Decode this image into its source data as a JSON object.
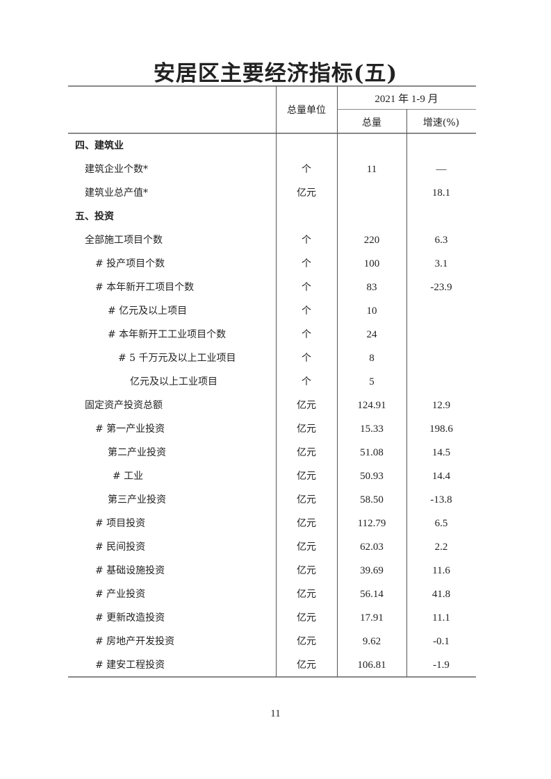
{
  "title": "安居区主要经济指标(五)",
  "header": {
    "unit": "总量单位",
    "period": "2021 年 1-9 月",
    "total": "总量",
    "growth": "增速(%)"
  },
  "rows": [
    {
      "label": "四、建筑业",
      "level": 0,
      "bold": true,
      "unit": "",
      "total": "",
      "growth": ""
    },
    {
      "label": "建筑企业个数*",
      "level": 1,
      "unit": "个",
      "total": "11",
      "growth": "—"
    },
    {
      "label": "建筑业总产值*",
      "level": 1,
      "unit": "亿元",
      "total": "",
      "growth": "18.1"
    },
    {
      "label": "五、投资",
      "level": 0,
      "bold": true,
      "unit": "",
      "total": "",
      "growth": ""
    },
    {
      "label": "全部施工项目个数",
      "level": 1,
      "unit": "个",
      "total": "220",
      "growth": "6.3"
    },
    {
      "label": "# 投产项目个数",
      "level": 2,
      "unit": "个",
      "total": "100",
      "growth": "3.1"
    },
    {
      "label": "# 本年新开工项目个数",
      "level": 2,
      "unit": "个",
      "total": "83",
      "growth": "-23.9"
    },
    {
      "label": "# 亿元及以上项目",
      "level": 3,
      "unit": "个",
      "total": "10",
      "growth": ""
    },
    {
      "label": "# 本年新开工工业项目个数",
      "level": 3,
      "unit": "个",
      "total": "24",
      "growth": ""
    },
    {
      "label": "# 5 千万元及以上工业项目",
      "level": 4,
      "unit": "个",
      "total": "8",
      "growth": ""
    },
    {
      "label": "亿元及以上工业项目",
      "level": 5,
      "unit": "个",
      "total": "5",
      "growth": ""
    },
    {
      "label": "固定资产投资总额",
      "level": 1,
      "unit": "亿元",
      "total": "124.91",
      "growth": "12.9"
    },
    {
      "label": "# 第一产业投资",
      "level": 2,
      "unit": "亿元",
      "total": "15.33",
      "growth": "198.6"
    },
    {
      "label": "第二产业投资",
      "level": 3,
      "unit": "亿元",
      "total": "51.08",
      "growth": "14.5"
    },
    {
      "label": "# 工业",
      "level": 6,
      "unit": "亿元",
      "total": "50.93",
      "growth": "14.4"
    },
    {
      "label": "第三产业投资",
      "level": 3,
      "unit": "亿元",
      "total": "58.50",
      "growth": "-13.8"
    },
    {
      "label": "# 项目投资",
      "level": 2,
      "unit": "亿元",
      "total": "112.79",
      "growth": "6.5"
    },
    {
      "label": "# 民间投资",
      "level": 2,
      "unit": "亿元",
      "total": "62.03",
      "growth": "2.2"
    },
    {
      "label": "# 基础设施投资",
      "level": 2,
      "unit": "亿元",
      "total": "39.69",
      "growth": "11.6"
    },
    {
      "label": "# 产业投资",
      "level": 2,
      "unit": "亿元",
      "total": "56.14",
      "growth": "41.8"
    },
    {
      "label": "# 更新改造投资",
      "level": 2,
      "unit": "亿元",
      "total": "17.91",
      "growth": "11.1"
    },
    {
      "label": "# 房地产开发投资",
      "level": 2,
      "unit": "亿元",
      "total": "9.62",
      "growth": "-0.1"
    },
    {
      "label": "# 建安工程投资",
      "level": 2,
      "unit": "亿元",
      "total": "106.81",
      "growth": "-1.9"
    }
  ],
  "page_number": "11"
}
